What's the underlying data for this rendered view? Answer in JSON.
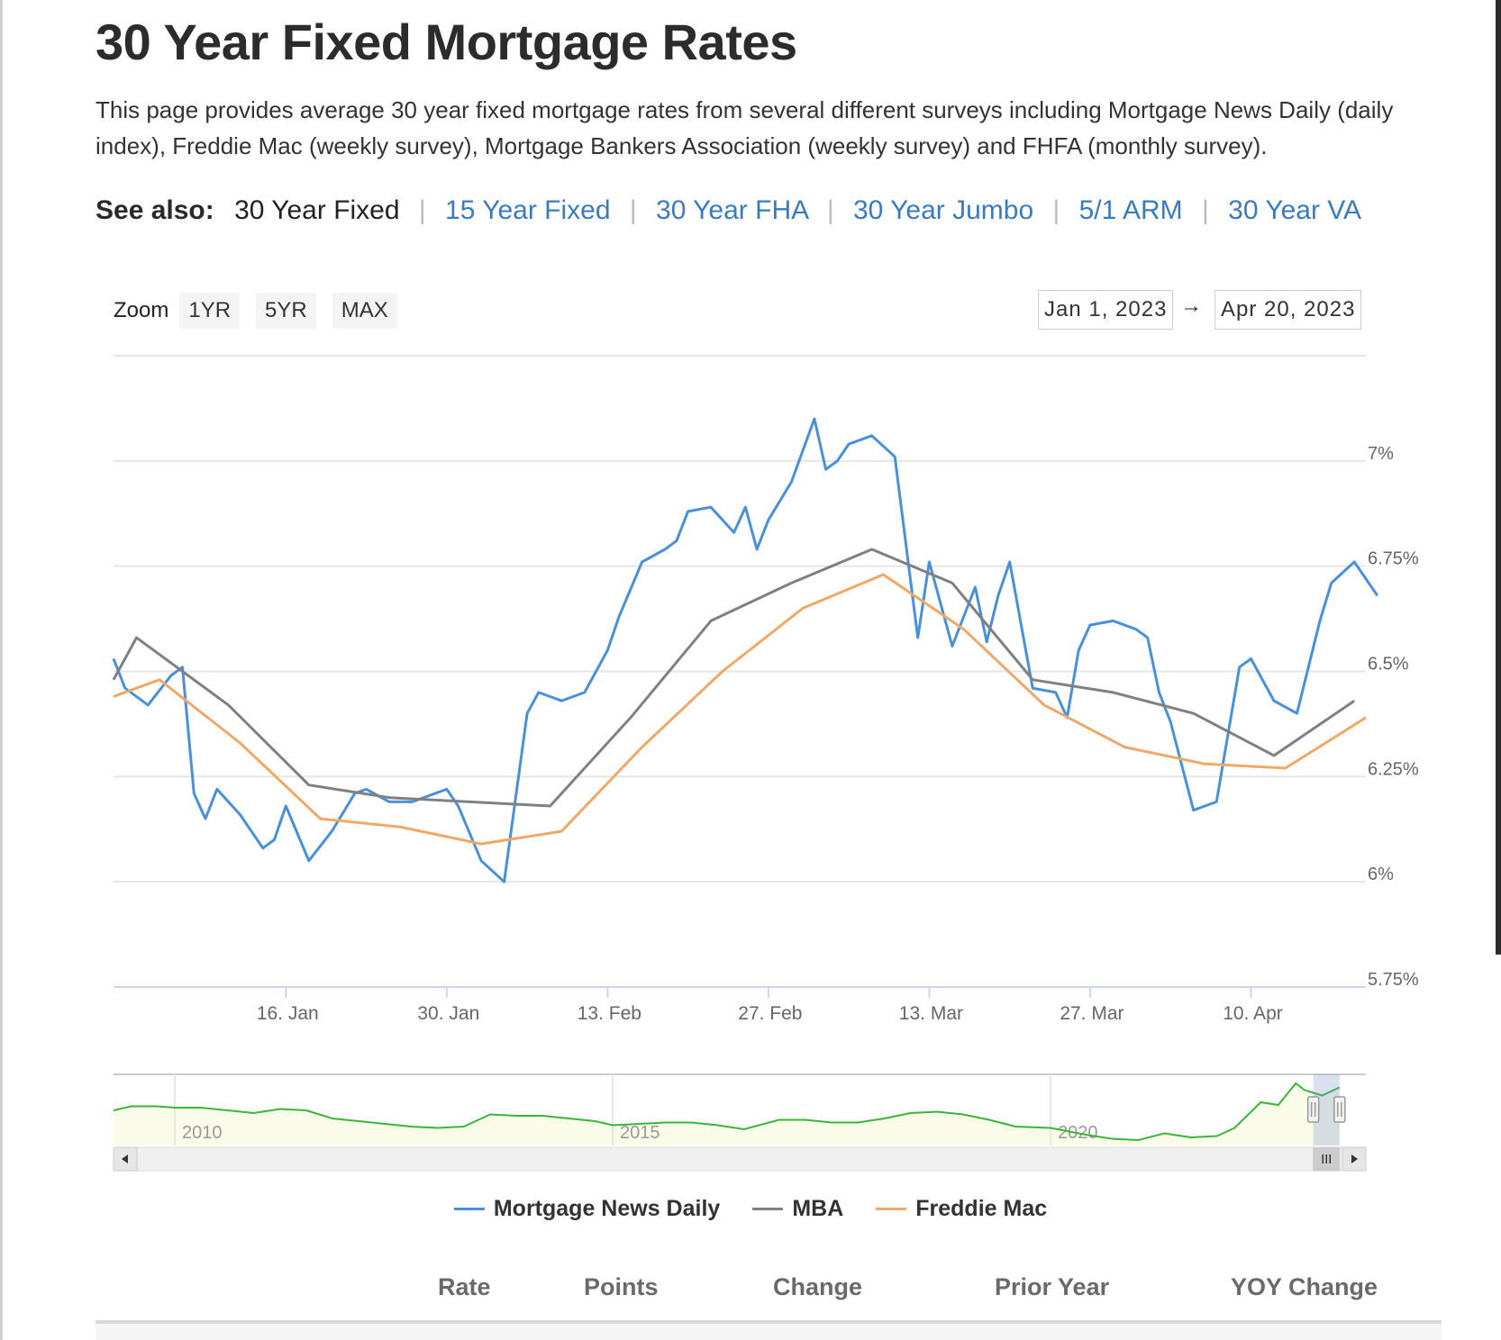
{
  "page": {
    "title": "30 Year Fixed Mortgage Rates",
    "intro": "This page provides average 30 year fixed mortgage rates from several different surveys including Mortgage News Daily (daily index), Freddie Mac (weekly survey), Mortgage Bankers Association (weekly survey) and FHFA (monthly survey)."
  },
  "see_also": {
    "label": "See also:",
    "current": "30 Year Fixed",
    "links": [
      "15 Year Fixed",
      "30 Year FHA",
      "30 Year Jumbo",
      "5/1 ARM",
      "30 Year VA"
    ]
  },
  "zoom": {
    "label": "Zoom",
    "buttons": [
      "1YR",
      "5YR",
      "MAX"
    ]
  },
  "range": {
    "from": "Jan 1, 2023",
    "arrow": "→",
    "to": "Apr 20, 2023"
  },
  "colors": {
    "mnd": "#4a90d9",
    "mba": "#808080",
    "freddie": "#f0a868",
    "navigator": "#3cb43c",
    "link": "#3a7bbd"
  },
  "chart_data": {
    "type": "line",
    "x_type": "date",
    "xlim": [
      "2023-01-01",
      "2023-04-20"
    ],
    "ylim": [
      5.75,
      7.25
    ],
    "y_ticks": [
      5.75,
      6,
      6.25,
      6.5,
      6.75,
      7
    ],
    "y_tick_labels": [
      "5.75%",
      "6%",
      "6.25%",
      "6.5%",
      "6.75%",
      "7%"
    ],
    "x_ticks": [
      "2023-01-16",
      "2023-01-30",
      "2023-02-13",
      "2023-02-27",
      "2023-03-13",
      "2023-03-27",
      "2023-04-10"
    ],
    "x_tick_labels": [
      "16. Jan",
      "30. Jan",
      "13. Feb",
      "27. Feb",
      "13. Mar",
      "27. Mar",
      "10. Apr"
    ],
    "y_axis_side": "right",
    "grid": true,
    "legend_placement": "bottom",
    "series": [
      {
        "name": "Mortgage News Daily",
        "color": "#4a90d9",
        "points": [
          [
            "2023-01-01",
            6.53
          ],
          [
            "2023-01-02",
            6.46
          ],
          [
            "2023-01-04",
            6.42
          ],
          [
            "2023-01-06",
            6.49
          ],
          [
            "2023-01-07",
            6.51
          ],
          [
            "2023-01-08",
            6.21
          ],
          [
            "2023-01-09",
            6.15
          ],
          [
            "2023-01-10",
            6.22
          ],
          [
            "2023-01-12",
            6.16
          ],
          [
            "2023-01-14",
            6.08
          ],
          [
            "2023-01-15",
            6.1
          ],
          [
            "2023-01-16",
            6.18
          ],
          [
            "2023-01-18",
            6.05
          ],
          [
            "2023-01-20",
            6.12
          ],
          [
            "2023-01-22",
            6.21
          ],
          [
            "2023-01-23",
            6.22
          ],
          [
            "2023-01-25",
            6.19
          ],
          [
            "2023-01-27",
            6.19
          ],
          [
            "2023-01-29",
            6.21
          ],
          [
            "2023-01-30",
            6.22
          ],
          [
            "2023-01-31",
            6.18
          ],
          [
            "2023-02-02",
            6.05
          ],
          [
            "2023-02-04",
            6.0
          ],
          [
            "2023-02-06",
            6.4
          ],
          [
            "2023-02-07",
            6.45
          ],
          [
            "2023-02-08",
            6.44
          ],
          [
            "2023-02-09",
            6.43
          ],
          [
            "2023-02-11",
            6.45
          ],
          [
            "2023-02-12",
            6.5
          ],
          [
            "2023-02-13",
            6.55
          ],
          [
            "2023-02-14",
            6.63
          ],
          [
            "2023-02-16",
            6.76
          ],
          [
            "2023-02-18",
            6.79
          ],
          [
            "2023-02-19",
            6.81
          ],
          [
            "2023-02-20",
            6.88
          ],
          [
            "2023-02-22",
            6.89
          ],
          [
            "2023-02-24",
            6.83
          ],
          [
            "2023-02-25",
            6.89
          ],
          [
            "2023-02-26",
            6.79
          ],
          [
            "2023-02-27",
            6.86
          ],
          [
            "2023-03-01",
            6.95
          ],
          [
            "2023-03-03",
            7.1
          ],
          [
            "2023-03-04",
            6.98
          ],
          [
            "2023-03-05",
            7.0
          ],
          [
            "2023-03-06",
            7.04
          ],
          [
            "2023-03-08",
            7.06
          ],
          [
            "2023-03-10",
            7.01
          ],
          [
            "2023-03-12",
            6.58
          ],
          [
            "2023-03-13",
            6.76
          ],
          [
            "2023-03-15",
            6.56
          ],
          [
            "2023-03-17",
            6.7
          ],
          [
            "2023-03-18",
            6.57
          ],
          [
            "2023-03-19",
            6.68
          ],
          [
            "2023-03-20",
            6.76
          ],
          [
            "2023-03-22",
            6.46
          ],
          [
            "2023-03-24",
            6.45
          ],
          [
            "2023-03-25",
            6.39
          ],
          [
            "2023-03-26",
            6.55
          ],
          [
            "2023-03-27",
            6.61
          ],
          [
            "2023-03-29",
            6.62
          ],
          [
            "2023-03-31",
            6.6
          ],
          [
            "2023-04-01",
            6.58
          ],
          [
            "2023-04-02",
            6.45
          ],
          [
            "2023-04-03",
            6.38
          ],
          [
            "2023-04-05",
            6.17
          ],
          [
            "2023-04-07",
            6.19
          ],
          [
            "2023-04-09",
            6.51
          ],
          [
            "2023-04-10",
            6.53
          ],
          [
            "2023-04-12",
            6.43
          ],
          [
            "2023-04-14",
            6.4
          ],
          [
            "2023-04-16",
            6.62
          ],
          [
            "2023-04-17",
            6.71
          ],
          [
            "2023-04-19",
            6.76
          ],
          [
            "2023-04-21",
            6.68
          ]
        ]
      },
      {
        "name": "MBA",
        "color": "#808080",
        "points": [
          [
            "2023-01-01",
            6.48
          ],
          [
            "2023-01-03",
            6.58
          ],
          [
            "2023-01-11",
            6.42
          ],
          [
            "2023-01-18",
            6.23
          ],
          [
            "2023-01-25",
            6.2
          ],
          [
            "2023-02-01",
            6.19
          ],
          [
            "2023-02-08",
            6.18
          ],
          [
            "2023-02-15",
            6.39
          ],
          [
            "2023-02-22",
            6.62
          ],
          [
            "2023-03-01",
            6.71
          ],
          [
            "2023-03-08",
            6.79
          ],
          [
            "2023-03-15",
            6.71
          ],
          [
            "2023-03-22",
            6.48
          ],
          [
            "2023-03-29",
            6.45
          ],
          [
            "2023-04-05",
            6.4
          ],
          [
            "2023-04-12",
            6.3
          ],
          [
            "2023-04-19",
            6.43
          ]
        ]
      },
      {
        "name": "Freddie Mac",
        "color": "#f0a868",
        "points": [
          [
            "2023-01-01",
            6.44
          ],
          [
            "2023-01-05",
            6.48
          ],
          [
            "2023-01-12",
            6.33
          ],
          [
            "2023-01-19",
            6.15
          ],
          [
            "2023-01-26",
            6.13
          ],
          [
            "2023-02-02",
            6.09
          ],
          [
            "2023-02-09",
            6.12
          ],
          [
            "2023-02-16",
            6.32
          ],
          [
            "2023-02-23",
            6.5
          ],
          [
            "2023-03-02",
            6.65
          ],
          [
            "2023-03-09",
            6.73
          ],
          [
            "2023-03-16",
            6.6
          ],
          [
            "2023-03-23",
            6.42
          ],
          [
            "2023-03-30",
            6.32
          ],
          [
            "2023-04-06",
            6.28
          ],
          [
            "2023-04-13",
            6.27
          ],
          [
            "2023-04-20",
            6.39
          ]
        ]
      }
    ],
    "navigator": {
      "x_labels": [
        "2010",
        "2015",
        "2020"
      ],
      "x_label_positions_year": [
        2010,
        2015,
        2020
      ],
      "xlim_year": [
        2009.3,
        2023.6
      ],
      "ylim": [
        2.5,
        7.5
      ],
      "selected_range_year": [
        2023.0,
        2023.3
      ],
      "series": [
        [
          2009.3,
          5.1
        ],
        [
          2009.5,
          5.4
        ],
        [
          2009.8,
          5.4
        ],
        [
          2010.0,
          5.3
        ],
        [
          2010.3,
          5.3
        ],
        [
          2010.6,
          5.1
        ],
        [
          2010.9,
          4.9
        ],
        [
          2011.2,
          5.2
        ],
        [
          2011.5,
          5.1
        ],
        [
          2011.8,
          4.5
        ],
        [
          2012.1,
          4.3
        ],
        [
          2012.4,
          4.1
        ],
        [
          2012.7,
          3.9
        ],
        [
          2013.0,
          3.8
        ],
        [
          2013.3,
          3.9
        ],
        [
          2013.6,
          4.8
        ],
        [
          2013.9,
          4.7
        ],
        [
          2014.2,
          4.7
        ],
        [
          2014.5,
          4.5
        ],
        [
          2014.8,
          4.3
        ],
        [
          2015.0,
          4.0
        ],
        [
          2015.3,
          4.1
        ],
        [
          2015.6,
          4.2
        ],
        [
          2015.9,
          4.2
        ],
        [
          2016.2,
          4.0
        ],
        [
          2016.5,
          3.7
        ],
        [
          2016.9,
          4.4
        ],
        [
          2017.2,
          4.4
        ],
        [
          2017.5,
          4.2
        ],
        [
          2017.8,
          4.2
        ],
        [
          2018.1,
          4.5
        ],
        [
          2018.4,
          4.9
        ],
        [
          2018.7,
          5.0
        ],
        [
          2019.0,
          4.8
        ],
        [
          2019.3,
          4.4
        ],
        [
          2019.6,
          3.9
        ],
        [
          2020.0,
          3.8
        ],
        [
          2020.4,
          3.3
        ],
        [
          2020.7,
          3.0
        ],
        [
          2021.0,
          2.9
        ],
        [
          2021.3,
          3.4
        ],
        [
          2021.6,
          3.1
        ],
        [
          2021.9,
          3.2
        ],
        [
          2022.1,
          3.8
        ],
        [
          2022.4,
          5.7
        ],
        [
          2022.6,
          5.5
        ],
        [
          2022.8,
          7.1
        ],
        [
          2022.9,
          6.6
        ],
        [
          2023.0,
          6.4
        ],
        [
          2023.1,
          6.2
        ],
        [
          2023.3,
          6.8
        ]
      ]
    }
  },
  "legend": {
    "items": [
      "Mortgage News Daily",
      "MBA",
      "Freddie Mac"
    ]
  },
  "table": {
    "headers": [
      "Rate",
      "Points",
      "Change",
      "Prior Year",
      "YOY Change"
    ]
  }
}
